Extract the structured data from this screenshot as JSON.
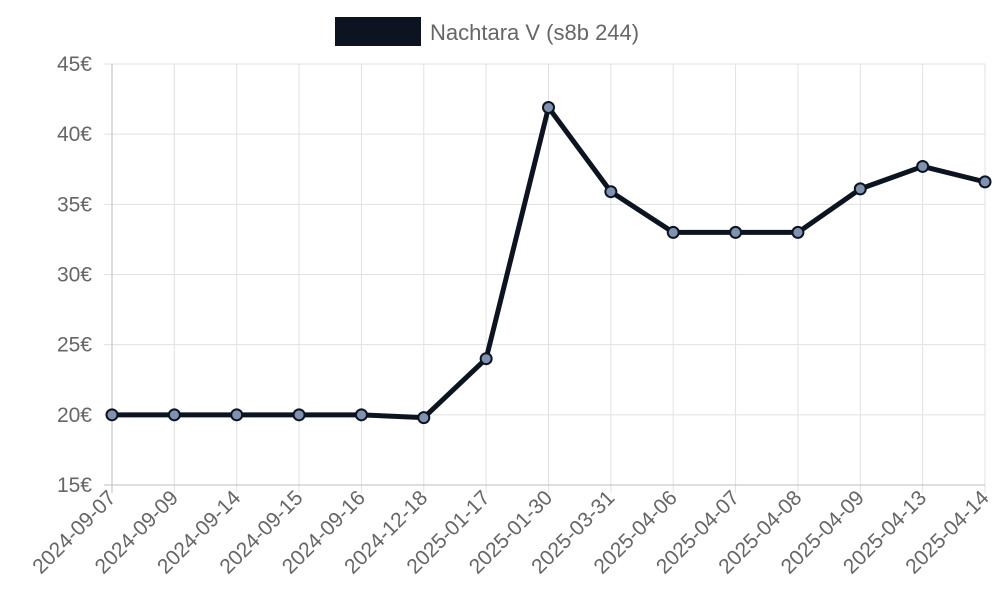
{
  "chart_data": {
    "type": "line",
    "title": "",
    "xlabel": "",
    "ylabel": "",
    "categories": [
      "2024-09-07",
      "2024-09-09",
      "2024-09-14",
      "2024-09-15",
      "2024-09-16",
      "2024-12-18",
      "2025-01-17",
      "2025-01-30",
      "2025-03-31",
      "2025-04-06",
      "2025-04-07",
      "2025-04-08",
      "2025-04-09",
      "2025-04-13",
      "2025-04-14"
    ],
    "series": [
      {
        "name": "Nachtara V (s8b 244)",
        "values": [
          20,
          20,
          20,
          20,
          20,
          19.8,
          24,
          41.9,
          35.9,
          33,
          33,
          33,
          36.1,
          37.7,
          36.6
        ],
        "line_color": "#0d1421",
        "point_color": "#7f93b0"
      }
    ],
    "ylim": [
      15,
      45
    ],
    "yticks": [
      15,
      20,
      25,
      30,
      35,
      40,
      45
    ],
    "ytick_labels": [
      "15€",
      "20€",
      "25€",
      "30€",
      "35€",
      "40€",
      "45€"
    ],
    "grid": true,
    "legend_position": "top"
  }
}
